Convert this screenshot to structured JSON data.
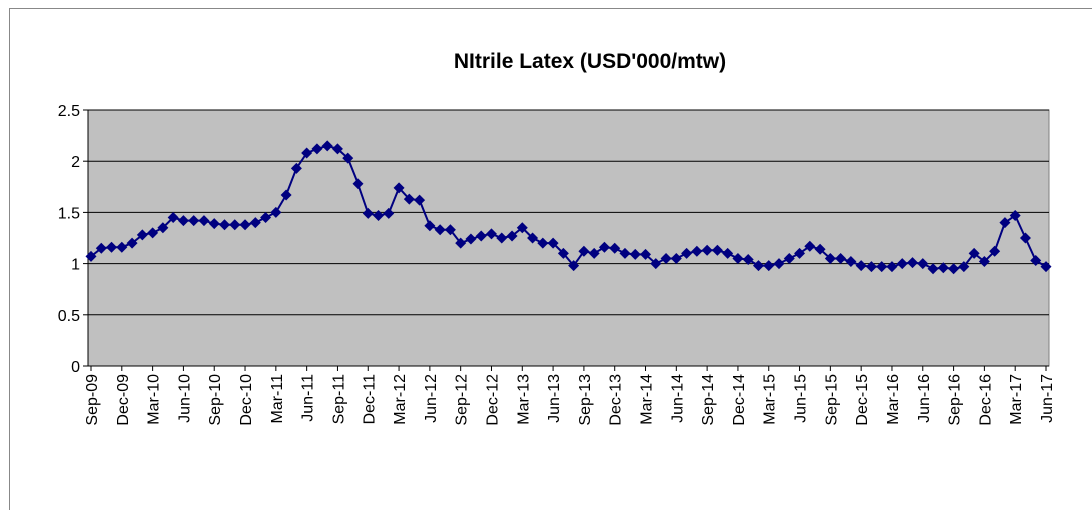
{
  "chart_data": {
    "type": "line",
    "title": "NItrile Latex (USD'000/mtw)",
    "categories": [
      "Sep-09",
      null,
      null,
      "Dec-09",
      null,
      null,
      "Mar-10",
      null,
      null,
      "Jun-10",
      null,
      null,
      "Sep-10",
      null,
      null,
      "Dec-10",
      null,
      null,
      "Mar-11",
      null,
      null,
      "Jun-11",
      null,
      null,
      "Sep-11",
      null,
      null,
      "Dec-11",
      null,
      null,
      "Mar-12",
      null,
      null,
      "Jun-12",
      null,
      null,
      "Sep-12",
      null,
      null,
      "Dec-12",
      null,
      null,
      "Mar-13",
      null,
      null,
      "Jun-13",
      null,
      null,
      "Sep-13",
      null,
      null,
      "Dec-13",
      null,
      null,
      "Mar-14",
      null,
      null,
      "Jun-14",
      null,
      null,
      "Sep-14",
      null,
      null,
      "Dec-14",
      null,
      null,
      "Mar-15",
      null,
      null,
      "Jun-15",
      null,
      null,
      "Sep-15",
      null,
      null,
      "Dec-15",
      null,
      null,
      "Mar-16",
      null,
      null,
      "Jun-16",
      null,
      null,
      "Sep-16",
      null,
      null,
      "Dec-16",
      null,
      null,
      "Mar-17",
      null,
      null,
      "Jun-17"
    ],
    "values": [
      1.07,
      1.15,
      1.16,
      1.16,
      1.2,
      1.28,
      1.3,
      1.35,
      1.45,
      1.42,
      1.42,
      1.42,
      1.39,
      1.38,
      1.38,
      1.38,
      1.4,
      1.45,
      1.5,
      1.67,
      1.93,
      2.08,
      2.12,
      2.15,
      2.12,
      2.03,
      1.78,
      1.49,
      1.47,
      1.49,
      1.74,
      1.63,
      1.62,
      1.37,
      1.33,
      1.33,
      1.2,
      1.24,
      1.27,
      1.29,
      1.25,
      1.27,
      1.35,
      1.25,
      1.2,
      1.2,
      1.1,
      0.98,
      1.12,
      1.1,
      1.16,
      1.15,
      1.1,
      1.09,
      1.09,
      1.0,
      1.05,
      1.05,
      1.1,
      1.12,
      1.13,
      1.13,
      1.1,
      1.05,
      1.04,
      0.98,
      0.98,
      1.0,
      1.05,
      1.1,
      1.17,
      1.14,
      1.05,
      1.05,
      1.02,
      0.98,
      0.97,
      0.97,
      0.97,
      1.0,
      1.01,
      1.0,
      0.95,
      0.96,
      0.95,
      0.97,
      1.1,
      1.02,
      1.12,
      1.4,
      1.47,
      1.25,
      1.03,
      0.97
    ],
    "color": "#000080",
    "ylim": [
      0,
      2.5
    ],
    "yticks": [
      0,
      0.5,
      1,
      1.5,
      2,
      2.5
    ],
    "grid": true
  }
}
